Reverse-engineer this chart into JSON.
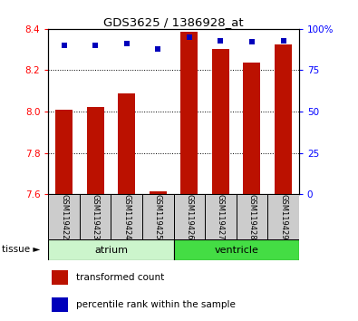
{
  "title": "GDS3625 / 1386928_at",
  "samples": [
    "GSM119422",
    "GSM119423",
    "GSM119424",
    "GSM119425",
    "GSM119426",
    "GSM119427",
    "GSM119428",
    "GSM119429"
  ],
  "transformed_counts": [
    8.01,
    8.02,
    8.09,
    7.615,
    8.385,
    8.305,
    8.235,
    8.325
  ],
  "percentile_ranks": [
    90,
    90,
    91,
    88,
    95,
    93,
    92,
    93
  ],
  "bar_bottom": 7.6,
  "ylim_left": [
    7.6,
    8.4
  ],
  "ylim_right": [
    0,
    100
  ],
  "yticks_left": [
    7.6,
    7.8,
    8.0,
    8.2,
    8.4
  ],
  "yticks_right": [
    0,
    25,
    50,
    75,
    100
  ],
  "ytick_labels_right": [
    "0",
    "25",
    "50",
    "75",
    "100%"
  ],
  "bar_color": "#bb1100",
  "dot_color": "#0000bb",
  "tissue_groups": [
    {
      "label": "atrium",
      "start": 0,
      "end": 4,
      "color": "#ccf5cc"
    },
    {
      "label": "ventricle",
      "start": 4,
      "end": 8,
      "color": "#44dd44"
    }
  ],
  "tissue_label": "tissue ►",
  "legend_items": [
    {
      "label": "transformed count",
      "color": "#bb1100"
    },
    {
      "label": "percentile rank within the sample",
      "color": "#0000bb"
    }
  ],
  "bar_width": 0.55
}
